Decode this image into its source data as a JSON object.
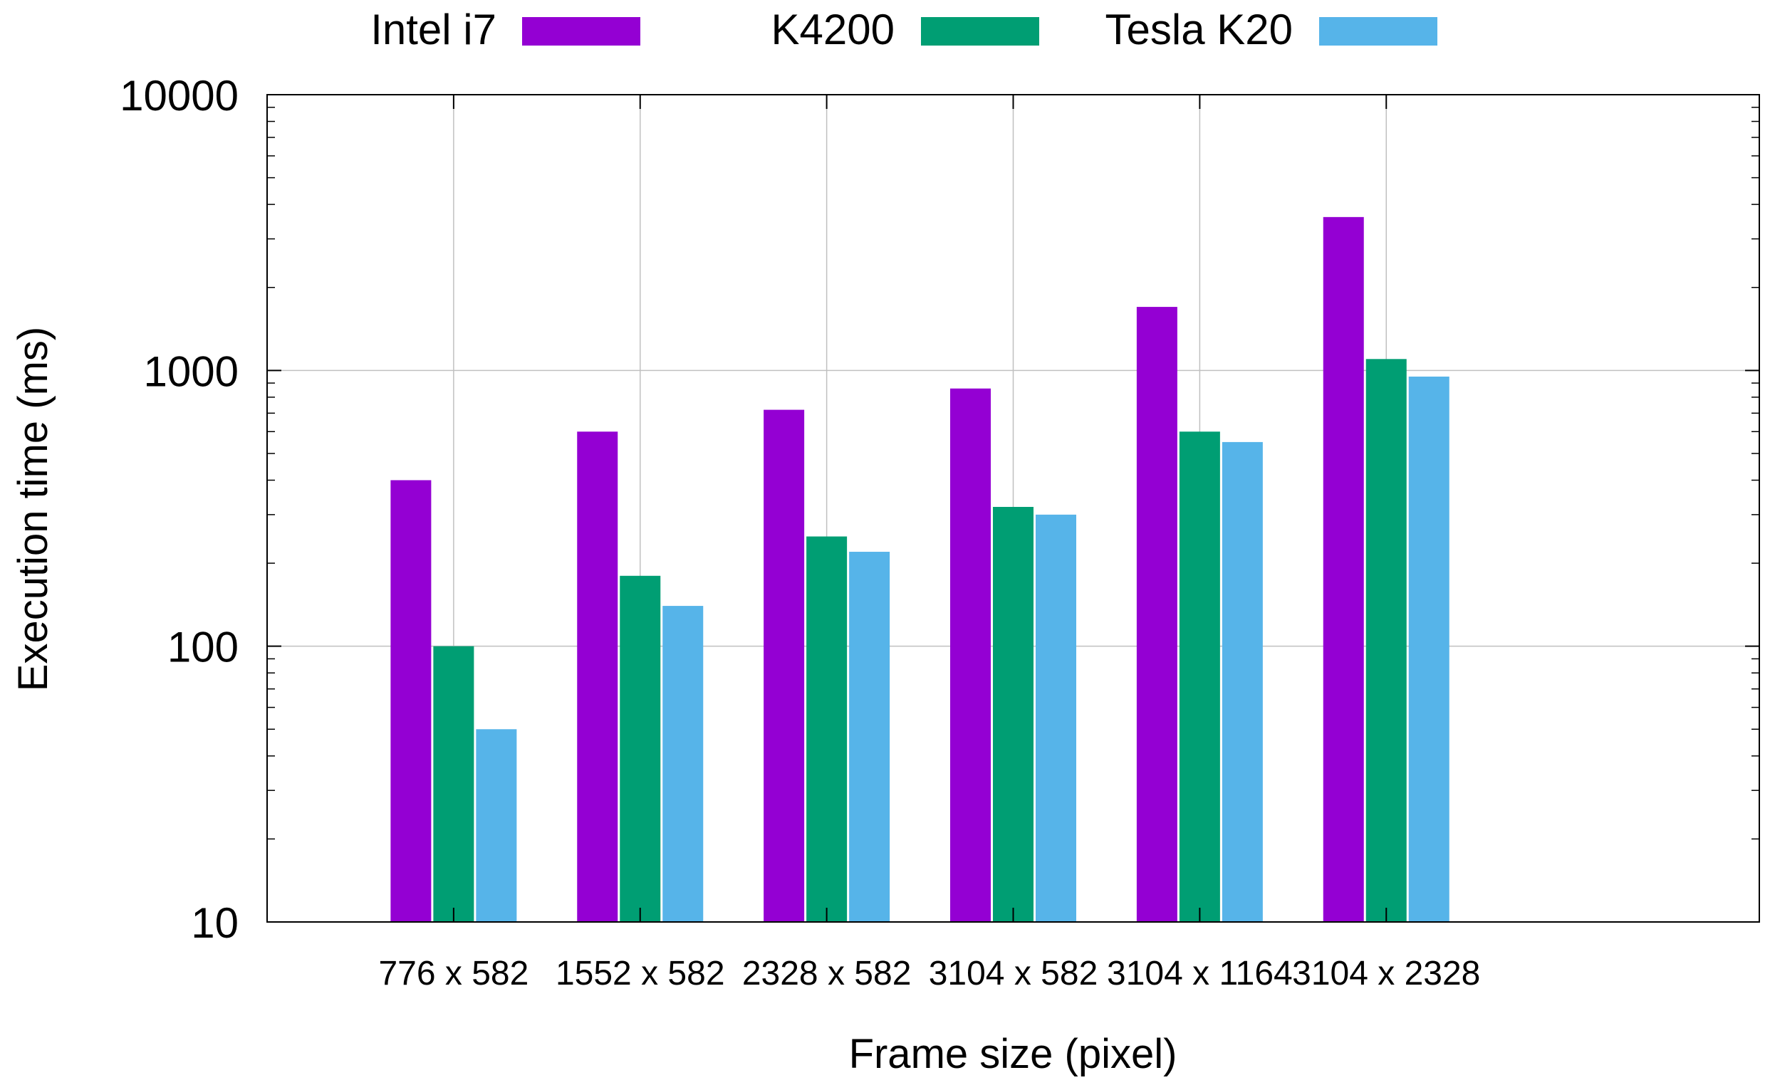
{
  "chart_data": {
    "type": "bar",
    "title": "",
    "xlabel": "Frame size (pixel)",
    "ylabel": "Execution time (ms)",
    "yscale": "log",
    "ylim": [
      10,
      10000
    ],
    "y_ticks": [
      10,
      100,
      1000,
      10000
    ],
    "y_tick_labels": [
      "10",
      "100",
      "1000",
      "10000"
    ],
    "grid": true,
    "legend_position": "top",
    "categories": [
      "776 x 582",
      "1552 x 582",
      "2328 x 582",
      "3104 x 582",
      "3104 x 1164",
      "3104 x 2328"
    ],
    "series": [
      {
        "name": "Intel i7",
        "color": "#9400d3",
        "values": [
          400,
          600,
          720,
          860,
          1700,
          3600
        ]
      },
      {
        "name": "K4200",
        "color": "#009e73",
        "values": [
          100,
          180,
          250,
          320,
          600,
          1100
        ]
      },
      {
        "name": "Tesla K20",
        "color": "#56b4e9",
        "values": [
          50,
          140,
          220,
          300,
          550,
          950
        ]
      }
    ]
  }
}
